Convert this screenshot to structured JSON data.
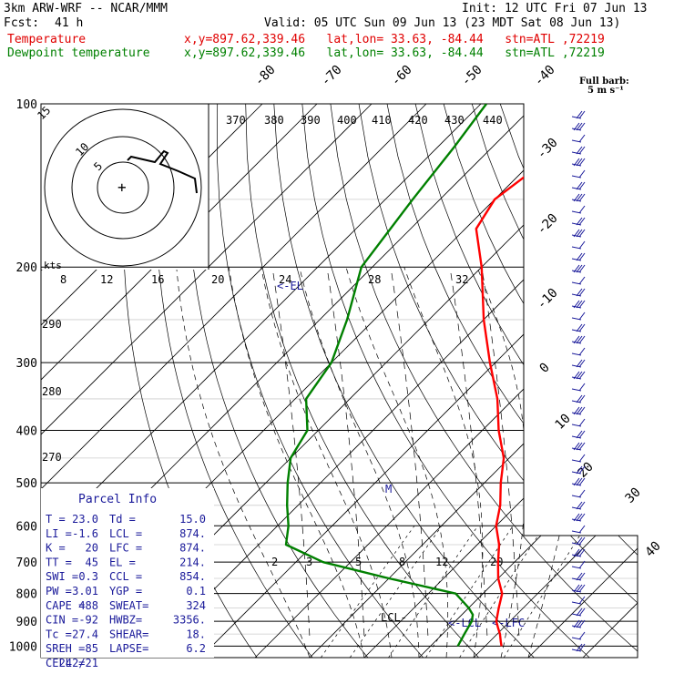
{
  "header": {
    "model": "3km ARW-WRF -- NCAR/MMM",
    "init": "Init: 12 UTC Fri 07 Jun 13",
    "fcst_label": "Fcst:",
    "fcst_value": "41 h",
    "valid": "Valid: 05 UTC Sun 09 Jun 13 (23 MDT Sat 08 Jun 13)",
    "temp_label": "Temperature",
    "dew_label": "Dewpoint temperature",
    "location": "x,y=897.62,339.46   lat,lon= 33.63, -84.44   stn=ATL ,72219"
  },
  "barb_legend": {
    "title": "Full barb:",
    "unit": "5 m s⁻¹"
  },
  "parcel_info": {
    "title": "Parcel Info",
    "rows": [
      [
        "T  =",
        "23.0",
        "Td =",
        "15.0"
      ],
      [
        "LI =",
        "-1.6",
        "LCL =",
        "874."
      ],
      [
        "K  =",
        "20",
        "LFC =",
        "874."
      ],
      [
        "TT =",
        "45",
        "EL =",
        "214."
      ],
      [
        "SWI =",
        "0.3",
        "CCL =",
        "854."
      ],
      [
        "PW =",
        "3.01",
        "YGP =",
        "0.1"
      ],
      [
        "CAPE =",
        "488",
        "SWEAT=",
        "324"
      ],
      [
        "CIN =",
        "-92",
        "HWBZ=",
        "3356."
      ],
      [
        "Tc =",
        "27.4",
        "SHEAR=",
        "18."
      ],
      [
        "SREH =",
        "85",
        "LAPSE=",
        "6.2"
      ],
      [
        "CELL =",
        "242/21",
        "",
        ""
      ]
    ]
  },
  "chart_data": {
    "type": "skew-t",
    "y_axis": {
      "label_units": "hPa",
      "ticks": [
        "100",
        "200",
        "300",
        "400",
        "500",
        "600",
        "700",
        "800",
        "900",
        "1000"
      ],
      "scale": "log-pressure"
    },
    "isotherm_labels": [
      "-80",
      "-70",
      "-60",
      "-50",
      "-40",
      "-30",
      "-20",
      "-10",
      "0",
      "10",
      "20",
      "30",
      "40"
    ],
    "theta_labels": [
      "370",
      "380",
      "390",
      "400",
      "410",
      "420",
      "430",
      "440",
      "290",
      "280",
      "270"
    ],
    "mixing_ratio_labels": [
      "2",
      "3",
      "5",
      "8",
      "12",
      "20"
    ],
    "hodograph": {
      "speed_label": "kts",
      "ring_labels": [
        "8",
        "12",
        "16",
        "20",
        "24",
        "28",
        "32"
      ],
      "inner_labels": [
        "5",
        "10",
        "15"
      ]
    },
    "level_labels": {
      "EL": "EL",
      "LCL_dew": "LCL",
      "LCL": "LCL",
      "LFC": "LFC",
      "M": "M"
    },
    "temperature": {
      "name": "Temperature",
      "color": "#ff0000",
      "points": [
        [
          1000,
          23.0
        ],
        [
          980,
          22
        ],
        [
          950,
          20.5
        ],
        [
          925,
          19
        ],
        [
          900,
          17.5
        ],
        [
          850,
          15.5
        ],
        [
          800,
          13.5
        ],
        [
          750,
          10
        ],
        [
          700,
          7
        ],
        [
          650,
          4
        ],
        [
          600,
          0
        ],
        [
          550,
          -3
        ],
        [
          500,
          -7
        ],
        [
          450,
          -11
        ],
        [
          400,
          -17
        ],
        [
          350,
          -23
        ],
        [
          300,
          -31
        ],
        [
          250,
          -40
        ],
        [
          200,
          -50
        ],
        [
          170,
          -58
        ],
        [
          150,
          -60
        ],
        [
          130,
          -58
        ],
        [
          110,
          -55
        ],
        [
          100,
          -53
        ]
      ]
    },
    "dewpoint": {
      "name": "Dewpoint temperature",
      "color": "#008000",
      "points": [
        [
          1000,
          15.0
        ],
        [
          950,
          14
        ],
        [
          900,
          13
        ],
        [
          875,
          12
        ],
        [
          850,
          10
        ],
        [
          800,
          5
        ],
        [
          750,
          -10
        ],
        [
          700,
          -25
        ],
        [
          650,
          -35
        ],
        [
          600,
          -38
        ],
        [
          550,
          -42
        ],
        [
          500,
          -46
        ],
        [
          450,
          -50
        ],
        [
          400,
          -52
        ],
        [
          350,
          -58
        ],
        [
          300,
          -60
        ],
        [
          250,
          -65
        ],
        [
          200,
          -72
        ],
        [
          150,
          -75
        ],
        [
          120,
          -77
        ],
        [
          100,
          -79
        ]
      ]
    },
    "wind_barbs": {
      "unit": "m/s"
    }
  }
}
